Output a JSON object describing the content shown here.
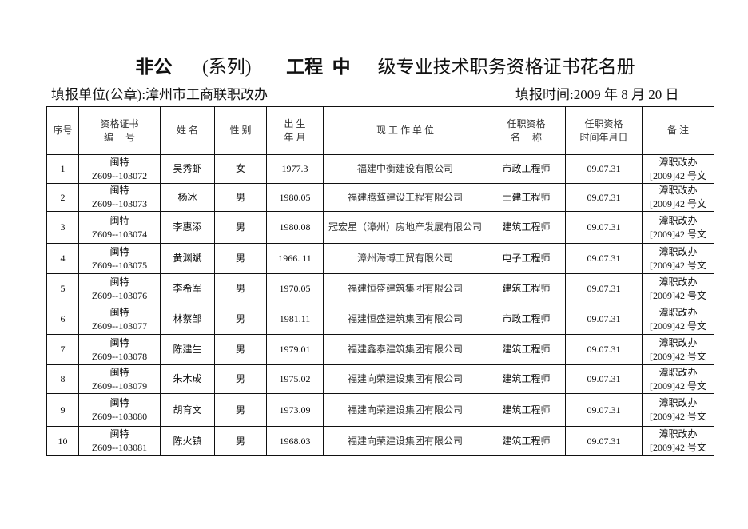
{
  "title": {
    "series": "非公",
    "series_label": "(系列)",
    "field": "工程",
    "level": "中",
    "suffix": "级专业技术职务资格证书花名册"
  },
  "meta": {
    "unit_label": "填报单位(公章):",
    "unit": "漳州市工商联职改办",
    "date_label": "填报时间:",
    "date": "2009 年 8 月 20 日"
  },
  "table": {
    "headers": [
      {
        "l1": "序号",
        "l2": ""
      },
      {
        "l1": "资格证书",
        "l2": "编　 号"
      },
      {
        "l1": "姓 名",
        "l2": ""
      },
      {
        "l1": "性 别",
        "l2": ""
      },
      {
        "l1": "出 生",
        "l2": "年 月"
      },
      {
        "l1": "现 工 作 单 位",
        "l2": ""
      },
      {
        "l1": "任职资格",
        "l2": "名　 称"
      },
      {
        "l1": "任职资格",
        "l2": "时间年月日"
      },
      {
        "l1": "备 注",
        "l2": ""
      }
    ],
    "rows": [
      {
        "no": "1",
        "cert1": "闽特",
        "cert2": "Z609--103072",
        "name": "吴秀虾",
        "sex": "女",
        "birth": "1977.3",
        "unit": "福建中衡建设有限公司",
        "qual": "市政工程师",
        "date": "09.07.31",
        "note1": "漳职改办",
        "note2": "[2009]42 号文"
      },
      {
        "no": "2",
        "cert1": "闽特",
        "cert2": "Z609--103073",
        "name": "杨冰",
        "sex": "男",
        "birth": "1980.05",
        "unit": "福建腾骜建设工程有限公司",
        "qual": "土建工程师",
        "date": "09.07.31",
        "note1": "漳职改办",
        "note2": "[2009]42 号文"
      },
      {
        "no": "3",
        "cert1": "闽特",
        "cert2": "Z609--103074",
        "name": "李惠添",
        "sex": "男",
        "birth": "1980.08",
        "unit": "冠宏星（漳州）房地产发展有限公司",
        "qual": "建筑工程师",
        "date": "09.07.31",
        "note1": "漳职改办",
        "note2": "[2009]42 号文"
      },
      {
        "no": "4",
        "cert1": "闽特",
        "cert2": "Z609--103075",
        "name": "黄渊斌",
        "sex": "男",
        "birth": "1966. 11",
        "unit": "漳州海博工贸有限公司",
        "qual": "电子工程师",
        "date": "09.07.31",
        "note1": "漳职改办",
        "note2": "[2009]42 号文"
      },
      {
        "no": "5",
        "cert1": "闽特",
        "cert2": "Z609--103076",
        "name": "李希军",
        "sex": "男",
        "birth": "1970.05",
        "unit": "福建恒盛建筑集团有限公司",
        "qual": "建筑工程师",
        "date": "09.07.31",
        "note1": "漳职改办",
        "note2": "[2009]42 号文"
      },
      {
        "no": "6",
        "cert1": "闽特",
        "cert2": "Z609--103077",
        "name": "林蔡邹",
        "sex": "男",
        "birth": "1981.11",
        "unit": "福建恒盛建筑集团有限公司",
        "qual": "市政工程师",
        "date": "09.07.31",
        "note1": "漳职改办",
        "note2": "[2009]42 号文"
      },
      {
        "no": "7",
        "cert1": "闽特",
        "cert2": "Z609--103078",
        "name": "陈建生",
        "sex": "男",
        "birth": "1979.01",
        "unit": "福建鑫泰建筑集团有限公司",
        "qual": "建筑工程师",
        "date": "09.07.31",
        "note1": "漳职改办",
        "note2": "[2009]42 号文"
      },
      {
        "no": "8",
        "cert1": "闽特",
        "cert2": "Z609--103079",
        "name": "朱木成",
        "sex": "男",
        "birth": "1975.02",
        "unit": "福建向荣建设集团有限公司",
        "qual": "建筑工程师",
        "date": "09.07.31",
        "note1": "漳职改办",
        "note2": "[2009]42 号文"
      },
      {
        "no": "9",
        "cert1": "闽特",
        "cert2": "Z609--103080",
        "name": "胡育文",
        "sex": "男",
        "birth": "1973.09",
        "unit": "福建向荣建设集团有限公司",
        "qual": "建筑工程师",
        "date": "09.07.31",
        "note1": "漳职改办",
        "note2": "[2009]42 号文"
      },
      {
        "no": "10",
        "cert1": "闽特",
        "cert2": "Z609--103081",
        "name": "陈火镇",
        "sex": "男",
        "birth": "1968.03",
        "unit": "福建向荣建设集团有限公司",
        "qual": "建筑工程师",
        "date": "09.07.31",
        "note1": "漳职改办",
        "note2": "[2009]42 号文"
      }
    ]
  }
}
